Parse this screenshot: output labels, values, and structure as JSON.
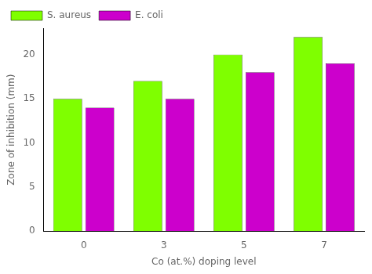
{
  "chart_data": {
    "type": "bar",
    "xlabel": "Co (at.%) doping level",
    "ylabel": "Zone of inhibition (mm)",
    "categories": [
      "0",
      "3",
      "5",
      "7"
    ],
    "series": [
      {
        "name": "S. aureus",
        "color": "#7FFF00",
        "values": [
          15,
          17,
          20,
          22
        ]
      },
      {
        "name": "E. coli",
        "color": "#CC00CC",
        "values": [
          14,
          15,
          18,
          19
        ]
      }
    ],
    "ylim": [
      0,
      23
    ],
    "yticks": [
      0,
      5,
      10,
      15,
      20
    ],
    "grid": false,
    "legend": "upper left"
  }
}
